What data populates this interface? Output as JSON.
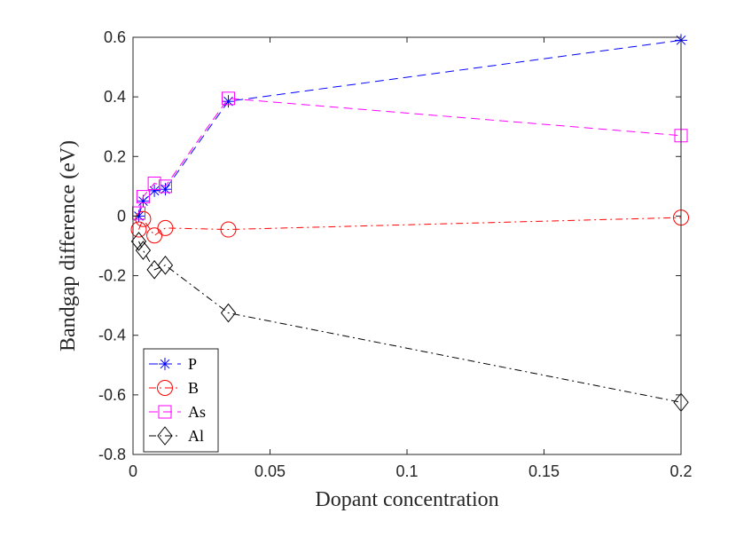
{
  "chart_data": {
    "type": "line",
    "title": "",
    "xlabel": "Dopant concentration",
    "ylabel": "Bandgap difference (eV)",
    "xlim": [
      0,
      0.2
    ],
    "ylim": [
      -0.8,
      0.6
    ],
    "xticks": [
      0,
      0.05,
      0.1,
      0.15,
      0.2
    ],
    "xtick_labels": [
      "0",
      "0.05",
      "0.1",
      "0.15",
      "0.2"
    ],
    "yticks": [
      0.6,
      0.4,
      0.2,
      0,
      -0.2,
      -0.4,
      -0.6,
      -0.8
    ],
    "ytick_labels": [
      "0.6",
      "0.4",
      "0.2",
      "0",
      "-0.2",
      "-0.4",
      "-0.6",
      "-0.8"
    ],
    "grid": false,
    "legend_position": "bottom-left",
    "series": [
      {
        "name": "P",
        "color": "#0000ff",
        "marker": "asterisk",
        "dash": "long-dash",
        "x": [
          0.0021,
          0.0037,
          0.0078,
          0.0118,
          0.0348,
          0.2
        ],
        "y": [
          0.0,
          0.05,
          0.085,
          0.09,
          0.385,
          0.59
        ]
      },
      {
        "name": "B",
        "color": "#ff0000",
        "marker": "circle",
        "dash": "dash-dot",
        "x": [
          0.0021,
          0.0037,
          0.0078,
          0.0118,
          0.0348,
          0.2
        ],
        "y": [
          -0.045,
          -0.01,
          -0.065,
          -0.04,
          -0.045,
          -0.005
        ]
      },
      {
        "name": "As",
        "color": "#ff00ff",
        "marker": "square",
        "dash": "long-dash",
        "x": [
          0.0021,
          0.0037,
          0.0078,
          0.0118,
          0.0348,
          0.2
        ],
        "y": [
          0.01,
          0.065,
          0.11,
          0.1,
          0.395,
          0.27
        ]
      },
      {
        "name": "Al",
        "color": "#000000",
        "marker": "diamond",
        "dash": "dash-dot",
        "x": [
          0.0021,
          0.0037,
          0.0078,
          0.0118,
          0.0348,
          0.2
        ],
        "y": [
          -0.085,
          -0.115,
          -0.18,
          -0.165,
          -0.325,
          -0.625
        ]
      }
    ]
  }
}
